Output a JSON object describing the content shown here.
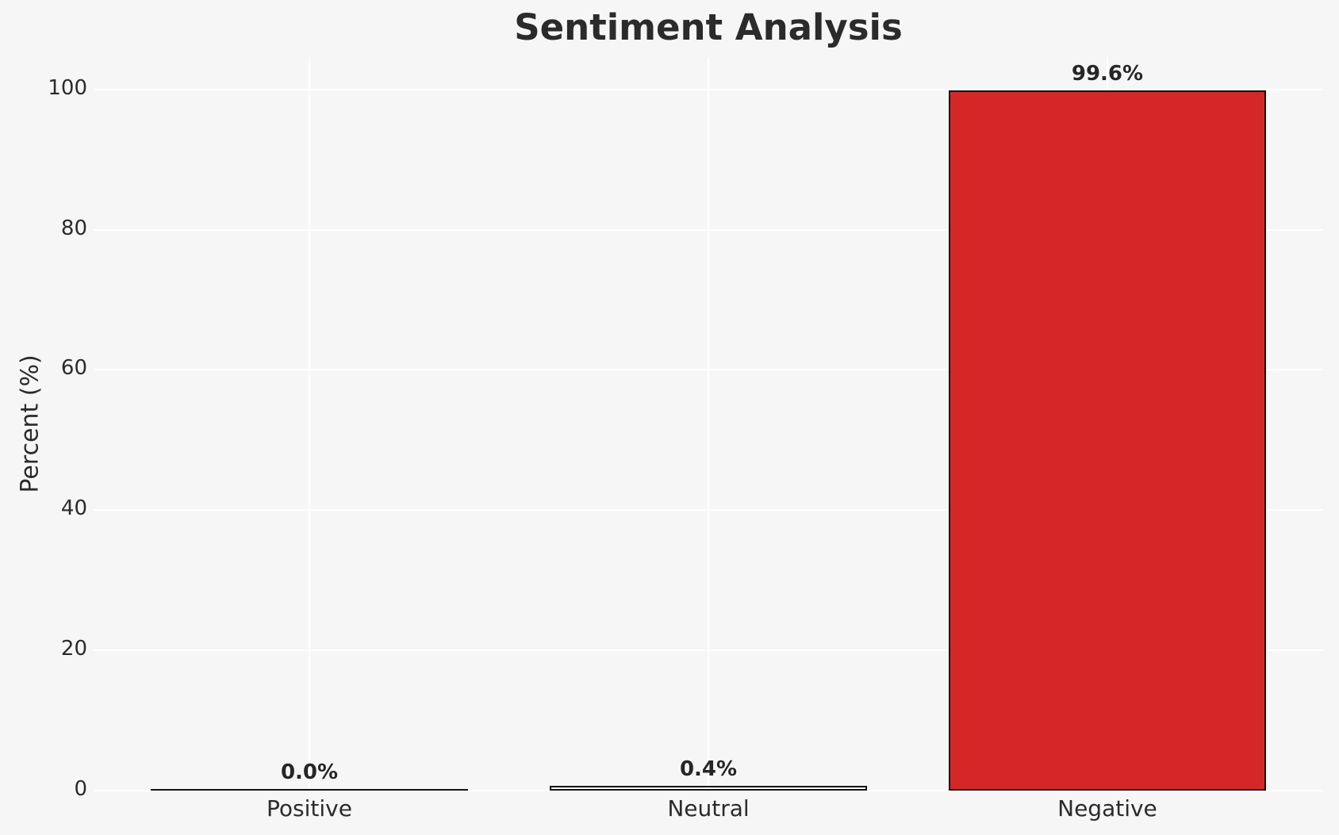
{
  "chart_data": {
    "type": "bar",
    "title": "Sentiment Analysis",
    "xlabel": "",
    "ylabel": "Percent (%)",
    "categories": [
      "Positive",
      "Neutral",
      "Negative"
    ],
    "values": [
      0.0,
      0.4,
      99.6
    ],
    "value_labels": [
      "0.0%",
      "0.4%",
      "99.6%"
    ],
    "yticks": [
      0,
      20,
      40,
      60,
      80,
      100
    ],
    "ytick_labels": [
      "0",
      "20",
      "40",
      "60",
      "80",
      "100"
    ],
    "ylim": [
      0,
      104.6
    ],
    "grid": "horizontal and vertical white gridlines, no axis spines, no tick marks",
    "legend": "none",
    "bar_fills": [
      "none",
      "none",
      "#d62728"
    ],
    "colors": {
      "negative_bar": "#d62728",
      "bar_edge": "#111111",
      "background": "#f6f6f6",
      "gridline": "#ffffff",
      "text": "#2b2b2b"
    }
  }
}
